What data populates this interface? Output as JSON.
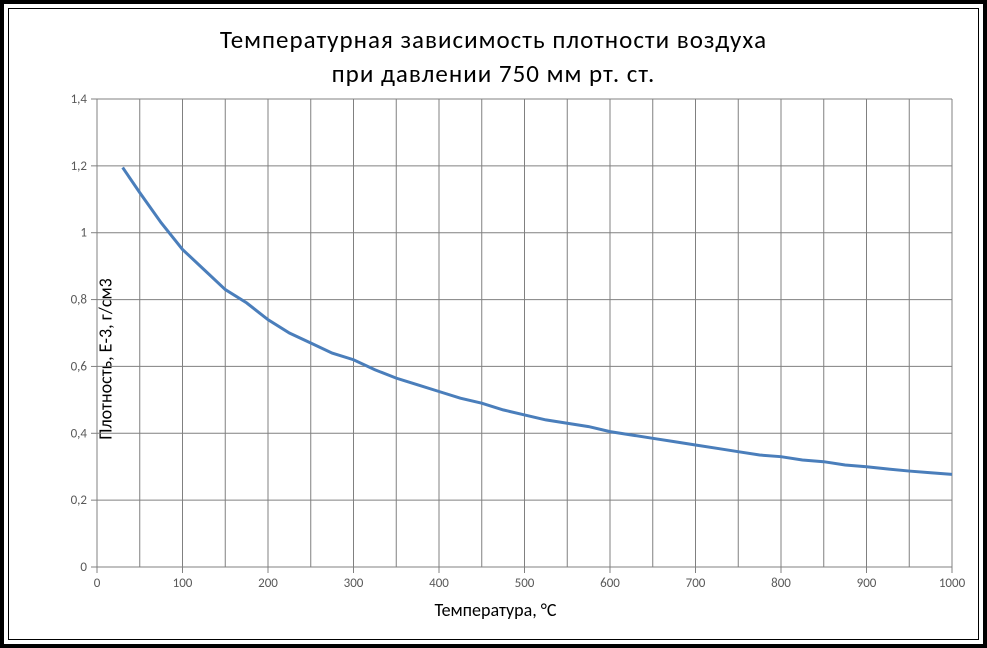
{
  "title_line1": "Температурная  зависимость  плотности  воздуха",
  "title_line2": "при  давлении  750  мм  рт.  ст.",
  "ylabel": "Плотность, Е-3, г/см3",
  "xlabel": "Температура, °С",
  "chart": {
    "type": "line",
    "background_color": "#ffffff",
    "grid_color": "#808080",
    "series_color": "#4a7ebb",
    "line_width": 3,
    "title_fontsize": 25,
    "axis_label_fontsize": 18,
    "tick_fontsize": 13,
    "tick_color": "#595959",
    "xlim": [
      0,
      1000
    ],
    "xtick_step_minor": 50,
    "xtick_labels": [
      0,
      100,
      200,
      300,
      400,
      500,
      600,
      700,
      800,
      900,
      1000
    ],
    "ylim": [
      0,
      1.4
    ],
    "ytick_step": 0.2,
    "ytick_labels": [
      "0",
      "0,2",
      "0,4",
      "0,6",
      "0,8",
      "1",
      "1,2",
      "1,4"
    ],
    "data": [
      {
        "x": 30,
        "y": 1.195
      },
      {
        "x": 50,
        "y": 1.12
      },
      {
        "x": 75,
        "y": 1.03
      },
      {
        "x": 100,
        "y": 0.95
      },
      {
        "x": 125,
        "y": 0.89
      },
      {
        "x": 150,
        "y": 0.83
      },
      {
        "x": 175,
        "y": 0.79
      },
      {
        "x": 200,
        "y": 0.74
      },
      {
        "x": 225,
        "y": 0.7
      },
      {
        "x": 250,
        "y": 0.67
      },
      {
        "x": 275,
        "y": 0.64
      },
      {
        "x": 300,
        "y": 0.62
      },
      {
        "x": 325,
        "y": 0.59
      },
      {
        "x": 350,
        "y": 0.565
      },
      {
        "x": 375,
        "y": 0.545
      },
      {
        "x": 400,
        "y": 0.525
      },
      {
        "x": 425,
        "y": 0.505
      },
      {
        "x": 450,
        "y": 0.49
      },
      {
        "x": 475,
        "y": 0.47
      },
      {
        "x": 500,
        "y": 0.455
      },
      {
        "x": 525,
        "y": 0.44
      },
      {
        "x": 550,
        "y": 0.43
      },
      {
        "x": 575,
        "y": 0.42
      },
      {
        "x": 600,
        "y": 0.405
      },
      {
        "x": 625,
        "y": 0.395
      },
      {
        "x": 650,
        "y": 0.385
      },
      {
        "x": 675,
        "y": 0.375
      },
      {
        "x": 700,
        "y": 0.365
      },
      {
        "x": 725,
        "y": 0.355
      },
      {
        "x": 750,
        "y": 0.345
      },
      {
        "x": 775,
        "y": 0.335
      },
      {
        "x": 800,
        "y": 0.33
      },
      {
        "x": 825,
        "y": 0.32
      },
      {
        "x": 850,
        "y": 0.315
      },
      {
        "x": 875,
        "y": 0.305
      },
      {
        "x": 900,
        "y": 0.3
      },
      {
        "x": 925,
        "y": 0.293
      },
      {
        "x": 950,
        "y": 0.287
      },
      {
        "x": 975,
        "y": 0.282
      },
      {
        "x": 1000,
        "y": 0.277
      }
    ]
  }
}
